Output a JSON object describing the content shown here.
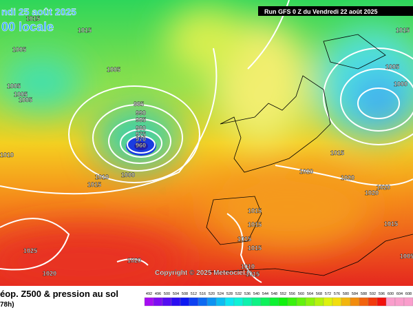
{
  "header": {
    "date": "ndi 25 août 2025",
    "time": "00 locale",
    "run": "Run GFS 0 Z du Vendredi 22 août 2025"
  },
  "isobars": [
    "1015",
    "1015",
    "1005",
    "1005",
    "1005",
    "1005",
    "1005",
    "995",
    "990",
    "985",
    "980",
    "975",
    "970",
    "960",
    "1010",
    "1000",
    "1010",
    "1015",
    "1015",
    "1020",
    "1020",
    "1020",
    "1020",
    "1015",
    "1015",
    "1015",
    "1015",
    "1025",
    "1020",
    "1020",
    "1010",
    "1015",
    "1005",
    "1015",
    "1000",
    "1005",
    "1015"
  ],
  "copyright": "Copyright © 2025 Meteociel.fr",
  "footer": {
    "title": "éop. Z500 & pression au sol",
    "subtitle": "78h)"
  },
  "scale": [
    492,
    496,
    500,
    504,
    508,
    512,
    516,
    520,
    524,
    528,
    532,
    536,
    540,
    544,
    548,
    552,
    556,
    560,
    564,
    568,
    572,
    576,
    580,
    584,
    588,
    592,
    596,
    600,
    604,
    608
  ]
}
